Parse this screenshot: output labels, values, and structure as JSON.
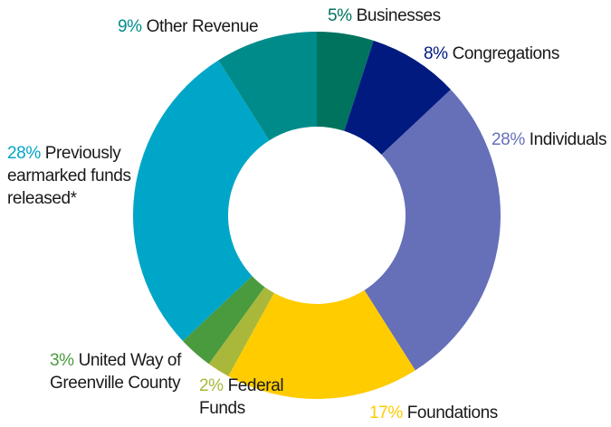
{
  "chart_data": {
    "type": "donut",
    "categories": [
      "Businesses",
      "Congregations",
      "Individuals",
      "Foundations",
      "Federal Funds",
      "United Way of Greenville County",
      "Previously earmarked funds released*",
      "Other Revenue"
    ],
    "values": [
      5,
      8,
      28,
      17,
      2,
      3,
      28,
      9
    ],
    "value_labels": [
      "5%",
      "8%",
      "28%",
      "17%",
      "2%",
      "3%",
      "28%",
      "9%"
    ],
    "colors": [
      "#00735f",
      "#001a80",
      "#6670b8",
      "#ffcc00",
      "#a9b83a",
      "#4a9a3e",
      "#00a6c8",
      "#008b8b"
    ]
  }
}
